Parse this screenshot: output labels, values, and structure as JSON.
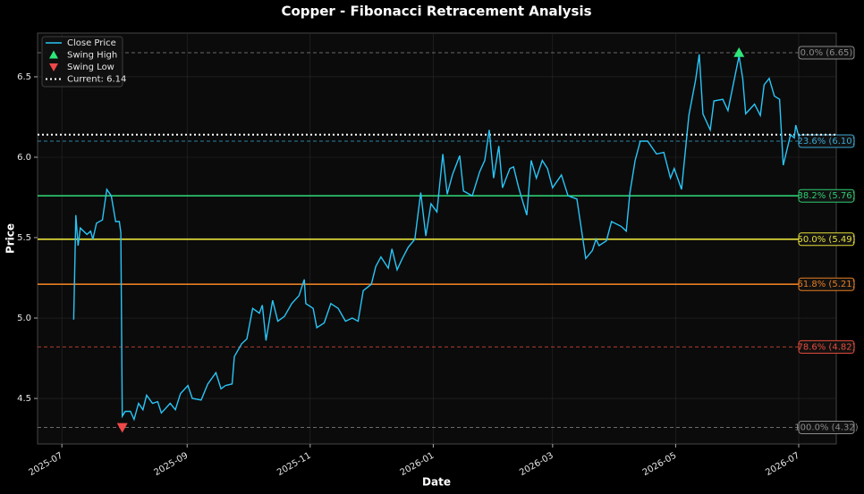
{
  "chart_data": {
    "type": "line",
    "title": "Copper - Fibonacci Retracement Analysis",
    "x_label": "Date",
    "y_label": "Price",
    "x": [
      2025.512,
      2025.515,
      2025.518,
      2025.521,
      2025.53,
      2025.535,
      2025.538,
      2025.543,
      2025.551,
      2025.557,
      2025.563,
      2025.569,
      2025.574,
      2025.576,
      2025.578,
      2025.582,
      2025.589,
      2025.594,
      2025.6,
      2025.606,
      2025.611,
      2025.619,
      2025.626,
      2025.631,
      2025.643,
      2025.65,
      2025.657,
      2025.667,
      2025.673,
      2025.685,
      2025.694,
      2025.705,
      2025.712,
      2025.718,
      2025.727,
      2025.73,
      2025.74,
      2025.747,
      2025.755,
      2025.764,
      2025.768,
      2025.773,
      2025.782,
      2025.789,
      2025.798,
      2025.808,
      2025.818,
      2025.825,
      2025.827,
      2025.837,
      2025.842,
      2025.852,
      2025.861,
      2025.871,
      2025.881,
      2025.89,
      2025.898,
      2025.905,
      2025.916,
      2025.922,
      2025.929,
      2025.939,
      2025.944,
      2025.951,
      2025.958,
      2025.966,
      2025.975,
      2025.983,
      2025.99,
      2025.997,
      2026.005,
      2026.013,
      2026.019,
      2026.026,
      2026.036,
      2026.041,
      2026.053,
      2026.063,
      2026.07,
      2026.076,
      2026.082,
      2026.089,
      2026.094,
      2026.104,
      2026.109,
      2026.116,
      2026.127,
      2026.133,
      2026.14,
      2026.148,
      2026.155,
      2026.162,
      2026.174,
      2026.183,
      2026.195,
      2026.207,
      2026.216,
      2026.221,
      2026.225,
      2026.235,
      2026.242,
      2026.255,
      2026.262,
      2026.267,
      2026.274,
      2026.281,
      2026.291,
      2026.303,
      2026.313,
      2026.322,
      2026.327,
      2026.337,
      2026.347,
      2026.356,
      2026.361,
      2026.366,
      2026.376,
      2026.381,
      2026.393,
      2026.4,
      2026.415,
      2026.42,
      2026.424,
      2026.436,
      2026.444,
      2026.449,
      2026.456,
      2026.463,
      2026.47,
      2026.475,
      2026.485,
      2026.49,
      2026.492,
      2026.496
    ],
    "series": [
      {
        "name": "Close Price",
        "color": "#29c5f6",
        "values": [
          4.99,
          5.64,
          5.45,
          5.56,
          5.52,
          5.54,
          5.49,
          5.59,
          5.61,
          5.8,
          5.76,
          5.6,
          5.6,
          5.53,
          4.39,
          4.42,
          4.42,
          4.37,
          4.47,
          4.43,
          4.52,
          4.47,
          4.48,
          4.41,
          4.47,
          4.43,
          4.53,
          4.58,
          4.5,
          4.49,
          4.59,
          4.66,
          4.56,
          4.58,
          4.59,
          4.76,
          4.84,
          4.87,
          5.06,
          5.03,
          5.08,
          4.86,
          5.11,
          4.98,
          5.01,
          5.09,
          5.14,
          5.24,
          5.09,
          5.06,
          4.94,
          4.97,
          5.09,
          5.06,
          4.98,
          5.0,
          4.98,
          5.17,
          5.21,
          5.32,
          5.38,
          5.31,
          5.43,
          5.3,
          5.37,
          5.44,
          5.49,
          5.78,
          5.51,
          5.71,
          5.66,
          6.02,
          5.77,
          5.89,
          6.01,
          5.79,
          5.76,
          5.91,
          5.98,
          6.17,
          5.87,
          6.07,
          5.81,
          5.93,
          5.94,
          5.81,
          5.64,
          5.98,
          5.87,
          5.98,
          5.93,
          5.81,
          5.89,
          5.76,
          5.74,
          5.37,
          5.42,
          5.49,
          5.45,
          5.48,
          5.6,
          5.57,
          5.54,
          5.78,
          5.98,
          6.1,
          6.1,
          6.02,
          6.03,
          5.87,
          5.93,
          5.8,
          6.26,
          6.48,
          6.64,
          6.27,
          6.17,
          6.35,
          6.36,
          6.29,
          6.63,
          6.49,
          6.27,
          6.33,
          6.26,
          6.45,
          6.49,
          6.38,
          6.36,
          5.95,
          6.14,
          6.12,
          6.2,
          6.13
        ]
      }
    ],
    "markers": [
      {
        "name": "Swing High",
        "x": 2026.415,
        "value": 6.65,
        "color": "#2ee87a",
        "shape": "triangle-up"
      },
      {
        "name": "Swing Low",
        "x": 2025.578,
        "value": 4.32,
        "color": "#f04848",
        "shape": "triangle-down"
      }
    ],
    "current": {
      "name": "Current: 6.14",
      "value": 6.14,
      "color": "#ffffff"
    },
    "levels": [
      {
        "label": "0.0% (6.65)",
        "value": 6.65,
        "color": "#8a8a8a",
        "dashed": true
      },
      {
        "label": "23.6% (6.10)",
        "value": 6.1,
        "color": "#3aa8d4",
        "dashed": true
      },
      {
        "label": "38.2% (5.76)",
        "value": 5.76,
        "color": "#2ecc71",
        "dashed": false
      },
      {
        "label": "50.0% (5.49)",
        "value": 5.49,
        "color": "#e6e03a",
        "dashed": false
      },
      {
        "label": "61.8% (5.21)",
        "value": 5.21,
        "color": "#e67e22",
        "dashed": false
      },
      {
        "label": "78.6% (4.82)",
        "value": 4.82,
        "color": "#e74c3c",
        "dashed": true
      },
      {
        "label": "100.0% (4.32)",
        "value": 4.32,
        "color": "#8a8a8a",
        "dashed": true
      }
    ],
    "xlim": [
      2025.463,
      2026.547
    ],
    "ylim": [
      4.217,
      6.772
    ],
    "xticks": [
      {
        "value": 2025.496,
        "label": "2025-07"
      },
      {
        "value": 2025.666,
        "label": "2025-09"
      },
      {
        "value": 2025.833,
        "label": "2025-11"
      },
      {
        "value": 2026.0,
        "label": "2026-01"
      },
      {
        "value": 2026.162,
        "label": "2026-03"
      },
      {
        "value": 2026.329,
        "label": "2026-05"
      },
      {
        "value": 2026.496,
        "label": "2026-07"
      }
    ],
    "yticks": [
      4.5,
      {
        "value": 5,
        "label": "5.0"
      },
      5.5,
      {
        "value": 6,
        "label": "6.0"
      },
      6.5
    ],
    "grid": true,
    "legend": "upper left"
  }
}
